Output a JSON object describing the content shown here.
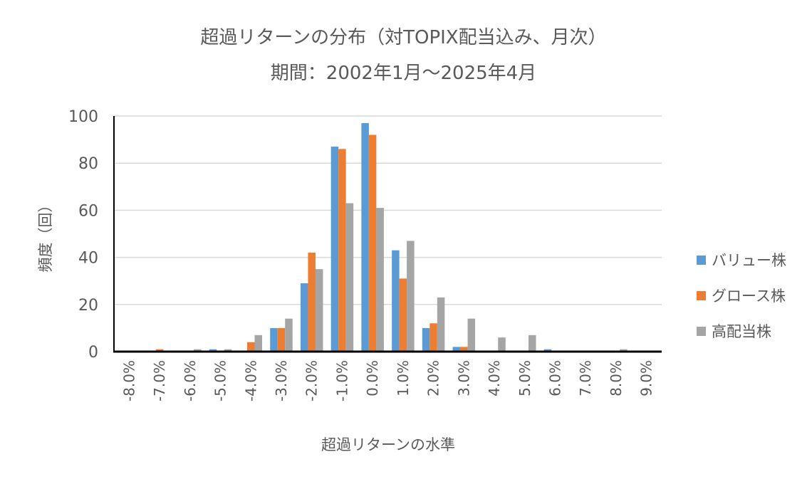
{
  "chart_data": {
    "type": "bar",
    "title": "超過リターンの分布（対TOPIX配当込み、月次）",
    "subtitle": "期間：2002年1月～2025年4月",
    "xlabel": "超過リターンの水準",
    "ylabel": "頻度（回）",
    "ylim": [
      0,
      100
    ],
    "yticks": [
      0,
      20,
      40,
      60,
      80,
      100
    ],
    "grid": true,
    "legend_position": "right",
    "categories": [
      "-8.0%",
      "-7.0%",
      "-6.0%",
      "-5.0%",
      "-4.0%",
      "-3.0%",
      "-2.0%",
      "-1.0%",
      "0.0%",
      "1.0%",
      "2.0%",
      "3.0%",
      "4.0%",
      "5.0%",
      "6.0%",
      "7.0%",
      "8.0%",
      "9.0%"
    ],
    "series": [
      {
        "name": "バリュー株",
        "color": "#5B9BD5",
        "values": [
          0,
          0,
          0,
          1,
          0,
          10,
          29,
          87,
          97,
          43,
          10,
          2,
          0,
          0,
          1,
          0,
          0,
          0
        ]
      },
      {
        "name": "グロース株",
        "color": "#ED7D31",
        "values": [
          0,
          1,
          0,
          0,
          4,
          10,
          42,
          86,
          92,
          31,
          12,
          2,
          0,
          0,
          0,
          0,
          0,
          0
        ]
      },
      {
        "name": "高配当株",
        "color": "#A5A5A5",
        "values": [
          0,
          0,
          1,
          1,
          7,
          14,
          35,
          63,
          61,
          47,
          23,
          14,
          6,
          7,
          0,
          0,
          1,
          0
        ]
      }
    ]
  }
}
